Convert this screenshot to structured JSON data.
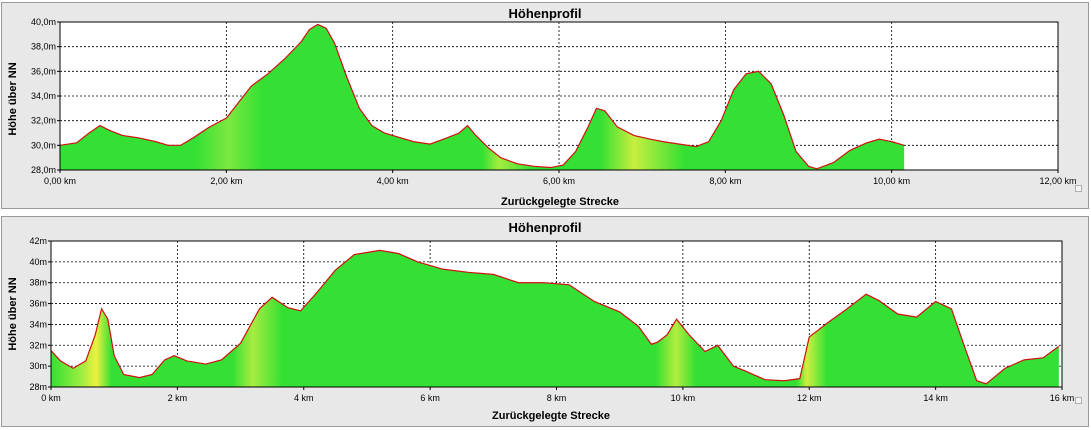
{
  "charts": [
    {
      "title": "Höhenprofil",
      "xlabel": "Zurückgelegte Strecke",
      "ylabel": "Höhe über NN"
    },
    {
      "title": "Höhenprofil",
      "xlabel": "Zurückgelegte Strecke",
      "ylabel": "Höhe über NN"
    }
  ],
  "chart_data": [
    {
      "type": "area",
      "title": "Höhenprofil",
      "xlabel": "Zurückgelegte Strecke",
      "ylabel": "Höhe über NN",
      "xlim": [
        0,
        12
      ],
      "ylim": [
        28,
        40
      ],
      "grid": true,
      "x_ticks": [
        0,
        2,
        4,
        6,
        8,
        10,
        12
      ],
      "x_tick_labels": [
        "0,00 km",
        "2,00 km",
        "4,00 km",
        "6,00 km",
        "8,00 km",
        "10,00 km",
        "12,00 km"
      ],
      "y_ticks": [
        28,
        30,
        32,
        34,
        36,
        38,
        40
      ],
      "y_tick_labels": [
        "28,0m",
        "30,0m",
        "32,0m",
        "34,0m",
        "36,0m",
        "38,0m",
        "40,0m"
      ],
      "line_color": "#d01010",
      "fill_colors": [
        "#33e033",
        "#eef040"
      ],
      "x": [
        0,
        0.2,
        0.35,
        0.48,
        0.6,
        0.75,
        0.95,
        1.15,
        1.3,
        1.45,
        1.6,
        1.8,
        2.0,
        2.15,
        2.3,
        2.5,
        2.7,
        2.9,
        3.0,
        3.1,
        3.2,
        3.3,
        3.45,
        3.6,
        3.75,
        3.9,
        4.05,
        4.25,
        4.45,
        4.65,
        4.8,
        4.9,
        5.0,
        5.15,
        5.3,
        5.5,
        5.7,
        5.9,
        6.05,
        6.2,
        6.35,
        6.45,
        6.55,
        6.7,
        6.9,
        7.1,
        7.25,
        7.45,
        7.65,
        7.8,
        7.95,
        8.1,
        8.25,
        8.4,
        8.55,
        8.7,
        8.85,
        9.0,
        9.1,
        9.3,
        9.5,
        9.7,
        9.85,
        10.0,
        10.15
      ],
      "y": [
        30.0,
        30.2,
        31.0,
        31.6,
        31.2,
        30.8,
        30.6,
        30.3,
        30.0,
        30.0,
        30.6,
        31.5,
        32.2,
        33.5,
        34.8,
        35.8,
        37.0,
        38.4,
        39.4,
        39.8,
        39.5,
        38.3,
        35.5,
        33.0,
        31.6,
        31.0,
        30.7,
        30.3,
        30.1,
        30.6,
        31.0,
        31.6,
        30.8,
        29.8,
        29.0,
        28.5,
        28.3,
        28.2,
        28.4,
        29.5,
        31.5,
        33.0,
        32.8,
        31.5,
        30.8,
        30.5,
        30.3,
        30.1,
        29.9,
        30.3,
        32.0,
        34.5,
        35.8,
        36.0,
        35.0,
        32.5,
        29.5,
        28.3,
        28.1,
        28.6,
        29.6,
        30.2,
        30.5,
        30.3,
        30.0
      ]
    },
    {
      "type": "area",
      "title": "Höhenprofil",
      "xlabel": "Zurückgelegte Strecke",
      "ylabel": "Höhe über NN",
      "xlim": [
        0,
        16
      ],
      "ylim": [
        28,
        42
      ],
      "grid": true,
      "x_ticks": [
        0,
        2,
        4,
        6,
        8,
        10,
        12,
        14,
        16
      ],
      "x_tick_labels": [
        "0 km",
        "2 km",
        "4 km",
        "6 km",
        "8 km",
        "10 km",
        "12 km",
        "14 km",
        "16 km"
      ],
      "y_ticks": [
        28,
        30,
        32,
        34,
        36,
        38,
        40,
        42
      ],
      "y_tick_labels": [
        "28m",
        "30m",
        "32m",
        "34m",
        "36m",
        "38m",
        "40m",
        "42m"
      ],
      "line_color": "#d01010",
      "fill_colors": [
        "#33e033",
        "#eef040"
      ],
      "x": [
        0,
        0.15,
        0.35,
        0.55,
        0.7,
        0.8,
        0.9,
        1.0,
        1.15,
        1.4,
        1.6,
        1.8,
        1.95,
        2.15,
        2.45,
        2.7,
        3.0,
        3.3,
        3.5,
        3.75,
        3.95,
        4.2,
        4.5,
        4.8,
        5.0,
        5.2,
        5.5,
        5.8,
        6.2,
        6.6,
        7.0,
        7.4,
        7.8,
        8.2,
        8.6,
        9.0,
        9.3,
        9.5,
        9.6,
        9.75,
        9.9,
        10.1,
        10.35,
        10.55,
        10.8,
        11.0,
        11.3,
        11.6,
        11.85,
        12.0,
        12.3,
        12.6,
        12.9,
        13.1,
        13.4,
        13.7,
        14.0,
        14.25,
        14.45,
        14.65,
        14.8,
        15.1,
        15.4,
        15.7,
        15.95
      ],
      "y": [
        31.5,
        30.5,
        29.8,
        30.5,
        33.0,
        35.5,
        34.5,
        31.0,
        29.2,
        28.9,
        29.2,
        30.6,
        31.0,
        30.5,
        30.2,
        30.6,
        32.2,
        35.5,
        36.6,
        35.6,
        35.3,
        37.0,
        39.2,
        40.7,
        40.9,
        41.1,
        40.8,
        40.0,
        39.3,
        39.0,
        38.8,
        38.0,
        38.0,
        37.8,
        36.2,
        35.2,
        33.8,
        32.1,
        32.3,
        33.0,
        34.5,
        33.0,
        31.4,
        32.0,
        30.0,
        29.5,
        28.7,
        28.6,
        28.8,
        32.8,
        34.2,
        35.5,
        36.9,
        36.3,
        35.0,
        34.7,
        36.2,
        35.5,
        32.0,
        28.6,
        28.3,
        29.8,
        30.6,
        30.8,
        31.9
      ]
    }
  ]
}
